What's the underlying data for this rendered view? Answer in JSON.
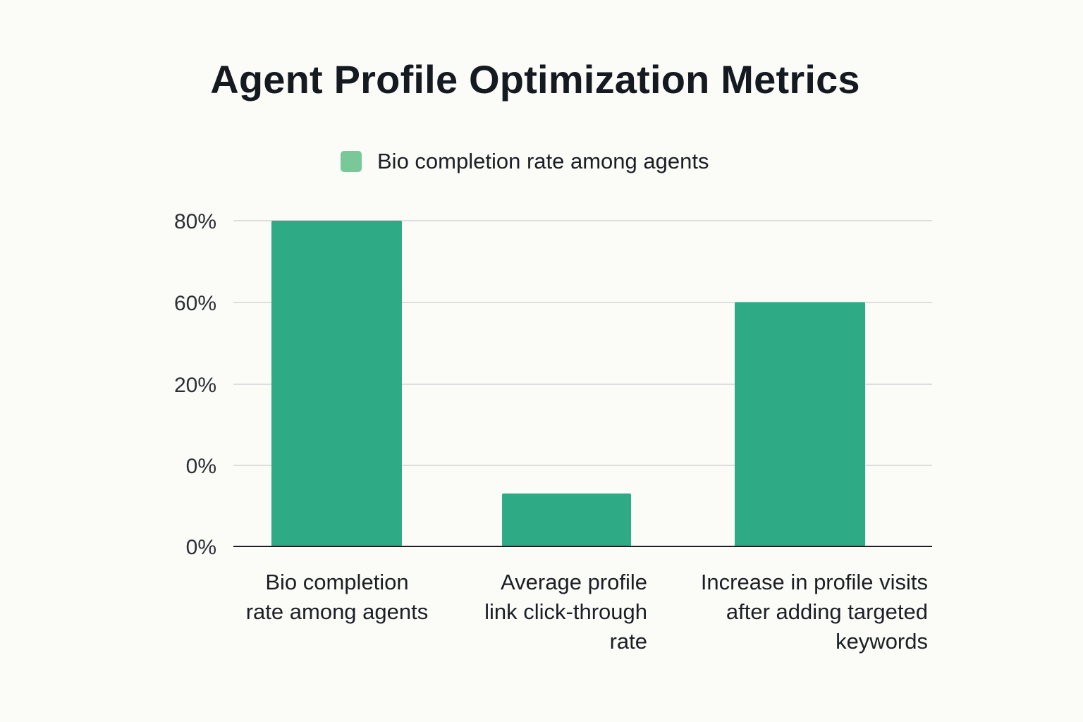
{
  "title": "Agent Profile Optimization Metrics",
  "legend": {
    "label": "Bio completion rate among agents",
    "swatch_color": "#78c898"
  },
  "colors": {
    "bar": "#2eab84",
    "grid": "#d5d5d5",
    "baseline": "#1b1f24"
  },
  "chart_data": {
    "type": "bar",
    "title": "Agent Profile Optimization Metrics",
    "legend_position": "top-center",
    "grid": true,
    "categories": [
      "Bio completion rate among agents",
      "Average profile link click-through rate",
      "Increase in profile visits after adding targeted keywords"
    ],
    "series": [
      {
        "name": "Bio completion rate among agents",
        "values": [
          80,
          13,
          60
        ]
      }
    ],
    "ytick_labels": [
      "80%",
      "60%",
      "20%",
      "0%",
      "0%"
    ],
    "category_label_lines": [
      [
        "Bio completion",
        "rate among agents"
      ],
      [
        "Average profile",
        "link click-through",
        "rate"
      ],
      [
        "Increase in profile visits",
        "after adding targeted",
        "keywords"
      ]
    ]
  }
}
